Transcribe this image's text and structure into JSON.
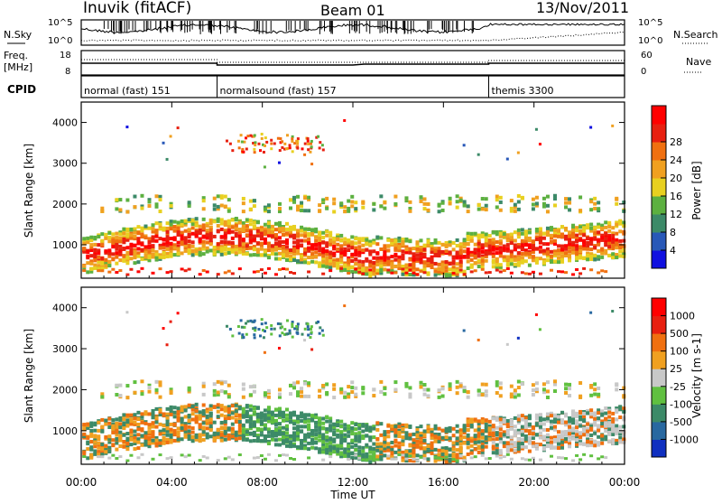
{
  "header": {
    "station": "Inuvik (fitACF)",
    "beam": "Beam 01",
    "date": "13/Nov/2011"
  },
  "nsky_panel": {
    "label": "N.Sky",
    "right_label": "N.Search",
    "left_ticks": [
      "10^5",
      "10^0"
    ],
    "right_ticks": [
      "10^5",
      "10^0"
    ]
  },
  "freq_panel": {
    "label_line1": "Freq.",
    "label_line2": "[MHz]",
    "right_label": "Nave",
    "left_ticks": [
      "18",
      "8"
    ],
    "right_ticks": [
      "60",
      "0"
    ]
  },
  "cpid_panel": {
    "label": "CPID",
    "segments": [
      {
        "label": "normal (fast) 151",
        "start_hour": 0,
        "end_hour": 6
      },
      {
        "label": "normalsound (fast) 157",
        "start_hour": 6,
        "end_hour": 18
      },
      {
        "label": "themis 3300",
        "start_hour": 18,
        "end_hour": 24
      }
    ]
  },
  "chart_data": [
    {
      "type": "heatmap",
      "name": "power",
      "ylabel": "Slant Range [km]",
      "ylim": [
        180,
        4500
      ],
      "y_ticks": [
        1000,
        2000,
        3000,
        4000
      ],
      "xlim": [
        0,
        24
      ],
      "colorbar": {
        "label": "Power [dB]",
        "ticks": [
          "4",
          "8",
          "12",
          "16",
          "20",
          "24",
          "28"
        ],
        "colors": [
          "#1010e0",
          "#2858b8",
          "#3c8a68",
          "#5cb040",
          "#e8d020",
          "#f0a020",
          "#f07010",
          "#e82010",
          "#ff0000"
        ]
      }
    },
    {
      "type": "heatmap",
      "name": "velocity",
      "ylabel": "Slant Range [km]",
      "ylim": [
        180,
        4500
      ],
      "y_ticks": [
        1000,
        2000,
        3000,
        4000
      ],
      "xlim": [
        0,
        24
      ],
      "colorbar": {
        "label": "Velocity [m s-1]",
        "ticks": [
          "1000",
          "500",
          "100",
          "25",
          "-25",
          "-100",
          "-500",
          "-1000"
        ],
        "colors": [
          "#1030c0",
          "#2868a0",
          "#3c8a68",
          "#60c040",
          "#c8c8c8",
          "#f0a020",
          "#f07010",
          "#e82010",
          "#ff0000"
        ]
      }
    }
  ],
  "time_axis": {
    "label": "Time UT",
    "ticks": [
      "00:00",
      "04:00",
      "08:00",
      "12:00",
      "16:00",
      "20:00",
      "00:00"
    ]
  }
}
